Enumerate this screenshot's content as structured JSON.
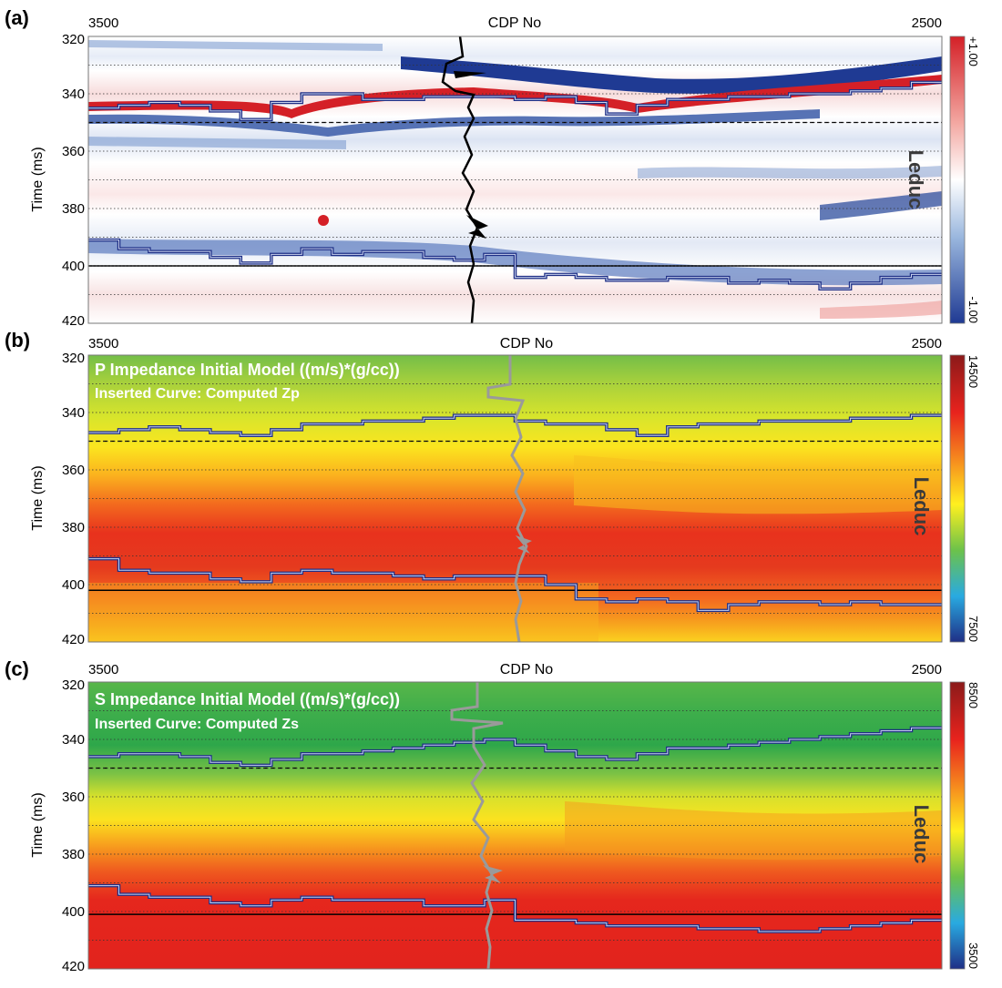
{
  "chart_data": [
    {
      "panel_label": "(a)",
      "type": "heatmap",
      "xlabel": "CDP No",
      "x_left": "3500",
      "x_right": "2500",
      "ylabel": "Time (ms)",
      "ylim": [
        320,
        420
      ],
      "y_ticks": [
        "320",
        "340",
        "360",
        "380",
        "400",
        "420"
      ],
      "colorbar": {
        "top": "+1.00",
        "bottom": "-1.00",
        "colors": [
          "#d42027",
          "#f3a7a1",
          "#ffffff",
          "#9ab7de",
          "#1f3a93"
        ]
      },
      "formation": "Leduc",
      "horizon_upper_ms": [
        345,
        344,
        343,
        344,
        346,
        349,
        343,
        340,
        340,
        342,
        342,
        341,
        341,
        341,
        342,
        341,
        343,
        347,
        344,
        342,
        342,
        341,
        341,
        340,
        340,
        339,
        338,
        336
      ],
      "horizon_lower_ms": [
        391,
        394,
        395,
        395,
        397,
        399,
        396,
        394,
        396,
        395,
        395,
        397,
        398,
        396,
        404,
        403,
        404,
        405,
        405,
        404,
        404,
        406,
        405,
        406,
        408,
        406,
        404,
        403
      ],
      "reference_dashed_ms": 350,
      "reference_solid_ms": 400
    },
    {
      "panel_label": "(b)",
      "type": "heatmap",
      "title": "P Impedance Initial Model ((m/s)*(g/cc))",
      "subtitle": "Inserted Curve: Computed Zp",
      "xlabel": "CDP No",
      "x_left": "3500",
      "x_right": "2500",
      "ylabel": "Time (ms)",
      "ylim": [
        320,
        420
      ],
      "y_ticks": [
        "320",
        "340",
        "360",
        "380",
        "400",
        "420"
      ],
      "colorbar": {
        "top": "14500",
        "bottom": "7500",
        "colors": [
          "#8b1a1a",
          "#e8231d",
          "#f7951e",
          "#fff01f",
          "#6cc24a",
          "#29aae1",
          "#1f2f86"
        ]
      },
      "formation": "Leduc",
      "horizon_upper_ms": [
        347,
        346,
        345,
        346,
        347,
        348,
        346,
        344,
        344,
        343,
        343,
        342,
        341,
        341,
        343,
        344,
        344,
        346,
        348,
        345,
        344,
        344,
        343,
        343,
        343,
        342,
        342,
        341
      ],
      "horizon_lower_ms": [
        391,
        395,
        396,
        396,
        398,
        399,
        396,
        395,
        396,
        396,
        397,
        398,
        397,
        397,
        397,
        400,
        405,
        406,
        405,
        406,
        409,
        407,
        406,
        406,
        407,
        406,
        407,
        407
      ],
      "reference_dashed_ms": 350,
      "reference_solid_ms": 402
    },
    {
      "panel_label": "(c)",
      "type": "heatmap",
      "title": "S Impedance Initial Model ((m/s)*(g/cc))",
      "subtitle": "Inserted Curve: Computed Zs",
      "xlabel": "CDP No",
      "x_left": "3500",
      "x_right": "2500",
      "ylabel": "Time (ms)",
      "ylim": [
        320,
        420
      ],
      "y_ticks": [
        "320",
        "340",
        "360",
        "380",
        "400",
        "420"
      ],
      "colorbar": {
        "top": "8500",
        "bottom": "3500",
        "colors": [
          "#8b1a1a",
          "#e8231d",
          "#f7951e",
          "#fff01f",
          "#6cc24a",
          "#29aae1",
          "#1f2f86"
        ]
      },
      "formation": "Leduc",
      "horizon_upper_ms": [
        346,
        345,
        345,
        346,
        348,
        349,
        347,
        345,
        345,
        344,
        343,
        342,
        341,
        340,
        342,
        344,
        346,
        347,
        345,
        343,
        343,
        342,
        341,
        340,
        339,
        338,
        337,
        336
      ],
      "horizon_lower_ms": [
        391,
        394,
        395,
        395,
        397,
        398,
        396,
        395,
        396,
        396,
        396,
        398,
        398,
        396,
        403,
        403,
        404,
        405,
        405,
        405,
        406,
        406,
        407,
        407,
        406,
        405,
        404,
        403
      ],
      "reference_dashed_ms": 350,
      "reference_solid_ms": 401
    }
  ]
}
